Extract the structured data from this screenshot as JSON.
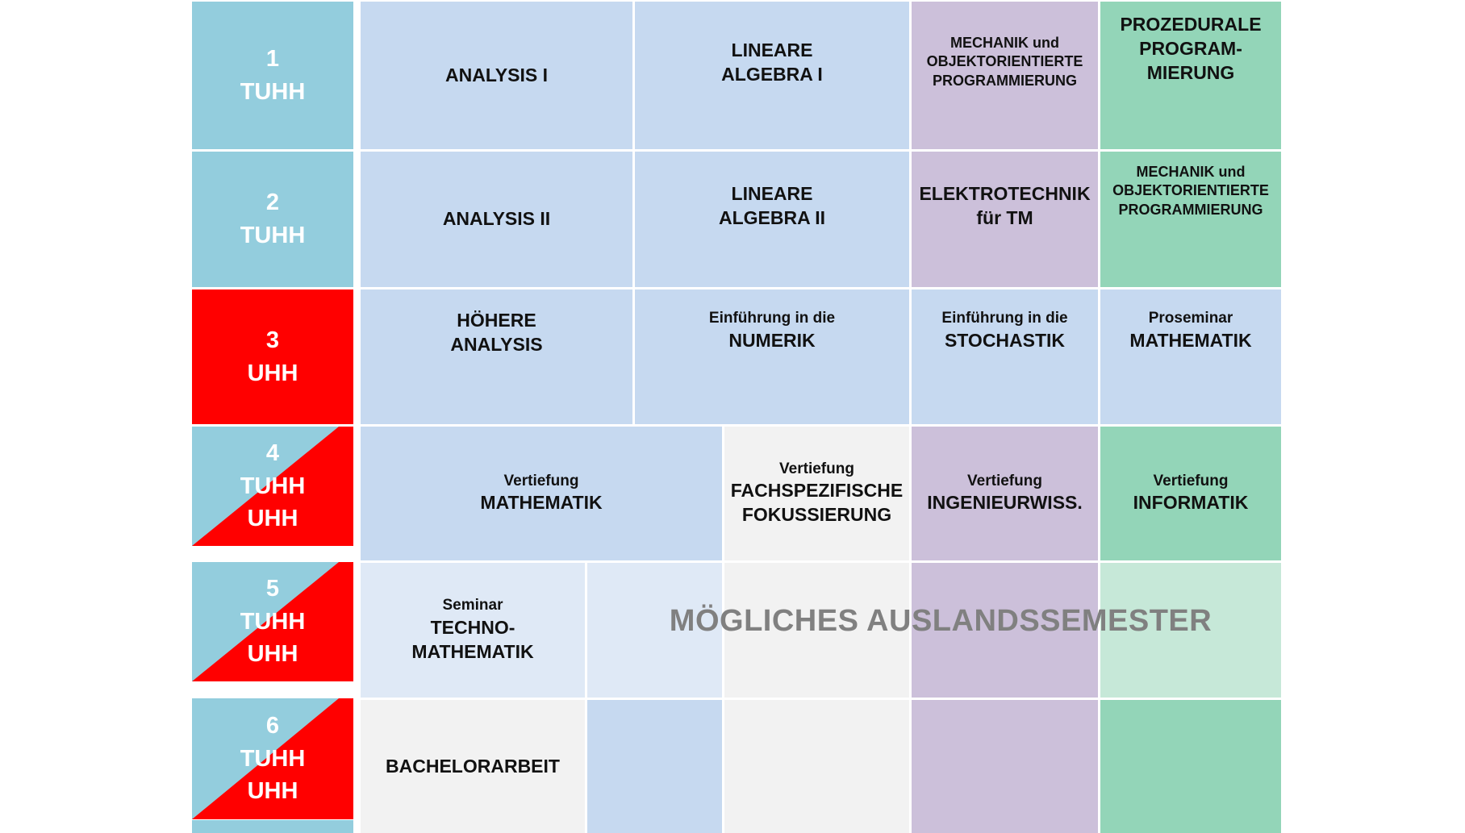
{
  "colors": {
    "semester_tuhh": "#93cddd",
    "semester_uhh": "#ff0000",
    "mathematik": "#c6d9f0",
    "ingenieur": "#ccc0da",
    "informatik": "#93d5b8",
    "fachspezifisch": "#f2f2f2"
  },
  "semesters": [
    {
      "number": "1",
      "uni": "TUHH"
    },
    {
      "number": "2",
      "uni": "TUHH"
    },
    {
      "number": "3",
      "uni": "UHH"
    },
    {
      "number": "4",
      "uni1": "TUHH",
      "uni2": "UHH"
    },
    {
      "number": "5",
      "uni1": "TUHH",
      "uni2": "UHH"
    },
    {
      "number": "6",
      "uni1": "TUHH",
      "uni2": "UHH"
    }
  ],
  "modules": {
    "analysis1": "ANALYSIS I",
    "la1_l1": "LINEARE",
    "la1_l2": "ALGEBRA I",
    "mop1_l1": "MECHANIK und",
    "mop1_l2": "OBJEKTORIENTIERTE",
    "mop1_l3": "PROGRAMMIERUNG",
    "prozed_l1": "PROZEDURALE",
    "prozed_l2": "PROGRAM-",
    "prozed_l3": "MIERUNG",
    "analysis2": "ANALYSIS II",
    "la2_l1": "LINEARE",
    "la2_l2": "ALGEBRA II",
    "etech_l1": "ELEKTROTECHNIK",
    "etech_l2": "für TM",
    "mop2_l1": "MECHANIK und",
    "mop2_l2": "OBJEKTORIENTIERTE",
    "mop2_l3": "PROGRAMMIERUNG",
    "hoehere_l1": "HÖHERE",
    "hoehere_l2": "ANALYSIS",
    "numerik_l1": "Einführung in die",
    "numerik_l2": "NUMERIK",
    "stoch_l1": "Einführung in die",
    "stoch_l2": "STOCHASTIK",
    "prosem_l1": "Proseminar",
    "prosem_l2": "MATHEMATIK",
    "vmath_l1": "Vertiefung",
    "vmath_l2": "MATHEMATIK",
    "vfach_l1": "Vertiefung",
    "vfach_l2": "FACHSPEZIFISCHE",
    "vfach_l3": "FOKUSSIERUNG",
    "ving_l1": "Vertiefung",
    "ving_l2": "INGENIEURWISS.",
    "vinf_l1": "Vertiefung",
    "vinf_l2": "INFORMATIK",
    "seminar_l1": "Seminar",
    "seminar_l2": "TECHNO-",
    "seminar_l3": "MATHEMATIK",
    "bachelor": "BACHELORARBEIT"
  },
  "overlay": "MÖGLICHES AUSLANDSSEMESTER"
}
